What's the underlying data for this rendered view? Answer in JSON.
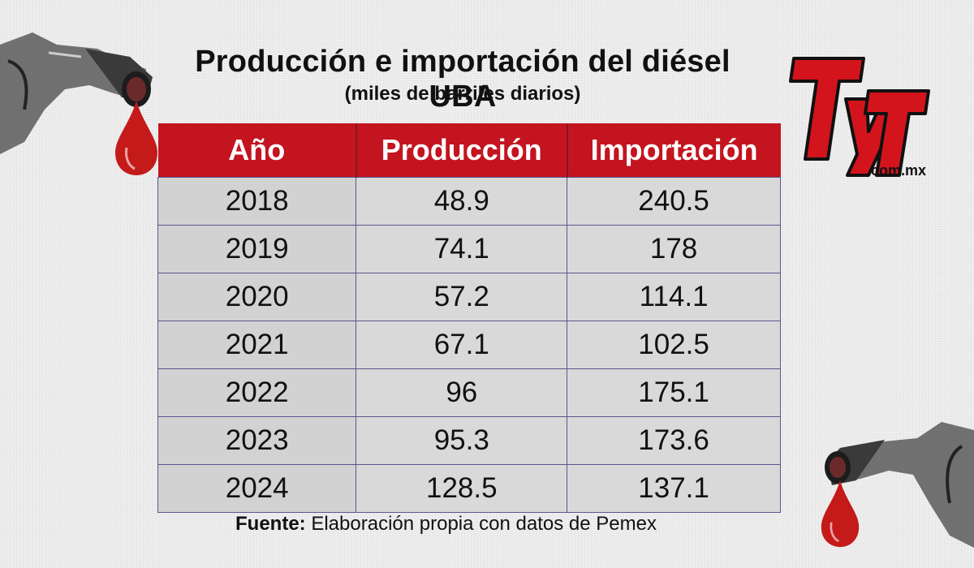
{
  "header": {
    "title": "Producción e importación del diésel UBA",
    "subtitle": "(miles de barriles diarios)"
  },
  "logo": {
    "text_main": "TyT",
    "text_domain": ".com.mx"
  },
  "colors": {
    "header_red": "#c3141f",
    "row_gray": "#d9d9d9",
    "drop_red": "#c41a1a"
  },
  "icons": [
    "fuel-nozzle-icon",
    "oil-drop-icon"
  ],
  "chart_data": {
    "type": "table",
    "columns": [
      "Año",
      "Producción",
      "Importación"
    ],
    "rows": [
      [
        "2018",
        "48.9",
        "240.5"
      ],
      [
        "2019",
        "74.1",
        "178"
      ],
      [
        "2020",
        "57.2",
        "114.1"
      ],
      [
        "2021",
        "67.1",
        "102.5"
      ],
      [
        "2022",
        "96",
        "175.1"
      ],
      [
        "2023",
        "95.3",
        "173.6"
      ],
      [
        "2024",
        "128.5",
        "137.1"
      ]
    ]
  },
  "source": {
    "label": "Fuente:",
    "text": " Elaboración propia con datos de Pemex"
  }
}
